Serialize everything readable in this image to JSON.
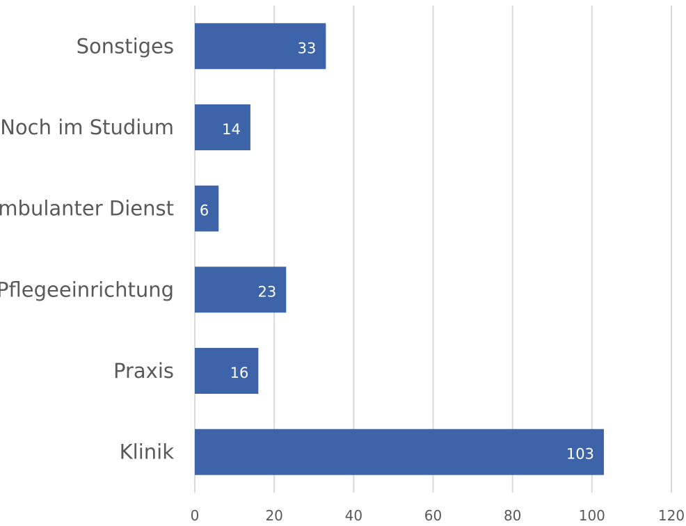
{
  "chart_data": {
    "type": "bar",
    "orientation": "horizontal",
    "title": "",
    "xlabel": "",
    "ylabel": "",
    "categories": [
      "Sonstiges",
      "Noch im Studium",
      "ambulanter Dienst",
      "Pflegeeinrichtung",
      "Praxis",
      "Klinik"
    ],
    "values": [
      33,
      14,
      6,
      23,
      16,
      103
    ],
    "xlim": [
      0,
      120
    ],
    "x_ticks": [
      0,
      20,
      40,
      60,
      80,
      100,
      120
    ],
    "data_labels": true,
    "grid": true,
    "legend": "none",
    "colors": {
      "bar": "#3d63a9",
      "grid": "#d9d9d9",
      "text": "#595959",
      "data_label": "#ffffff"
    }
  }
}
